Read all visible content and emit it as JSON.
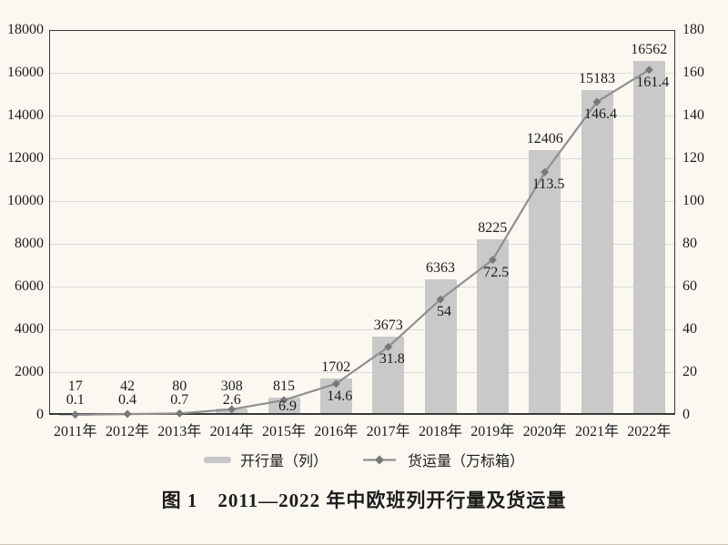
{
  "caption": "图 1　2011—2022 年中欧班列开行量及货运量",
  "chart_data": {
    "type": "bar",
    "combo": "bar+line",
    "title": "图 1　2011—2022 年中欧班列开行量及货运量",
    "categories": [
      "2011年",
      "2012年",
      "2013年",
      "2014年",
      "2015年",
      "2016年",
      "2017年",
      "2018年",
      "2019年",
      "2020年",
      "2021年",
      "2022年"
    ],
    "series": [
      {
        "name": "开行量（列）",
        "kind": "bar",
        "axis": "left",
        "values": [
          17,
          42,
          80,
          308,
          815,
          1702,
          3673,
          6363,
          8225,
          12406,
          15183,
          16562
        ]
      },
      {
        "name": "货运量（万标箱）",
        "kind": "line",
        "axis": "right",
        "values": [
          0.1,
          0.4,
          0.7,
          2.6,
          6.9,
          14.6,
          31.8,
          54,
          72.5,
          113.5,
          146.4,
          161.4
        ]
      }
    ],
    "left_axis": {
      "min": 0,
      "max": 18000,
      "step": 2000
    },
    "right_axis": {
      "min": 0,
      "max": 180,
      "step": 20
    },
    "grid": true,
    "legend_position": "bottom"
  },
  "colors": {
    "background": "#fbf8f2",
    "bar": "#c9c9c9",
    "line": "#8f8f8f",
    "marker": "#787878",
    "axis": "#3a3a3a",
    "grid": "#dadada",
    "text": "#1c1c1c"
  }
}
